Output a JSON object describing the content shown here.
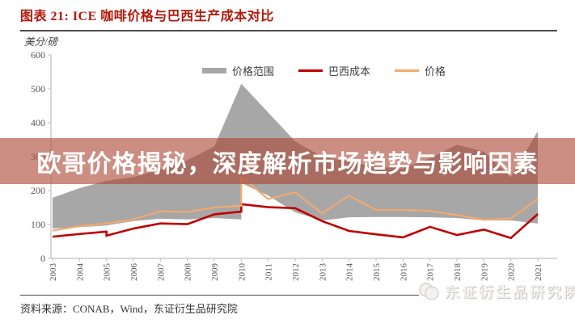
{
  "header": {
    "title": "图表 21: ICE 咖啡价格与巴西生产成本对比"
  },
  "banner": {
    "text": "欧哥价格揭秘，深度解析市场趋势与影响因素",
    "bg_color": "rgba(172,72,53,0.62)",
    "text_color": "#ffffff"
  },
  "footer": {
    "source": "资料来源：CONAB，Wind，东证衍生品研究院"
  },
  "watermark": {
    "brand": "东证衍生品研究院"
  },
  "chart_data": {
    "type": "line",
    "title": "图表 21: ICE 咖啡价格与巴西生产成本对比",
    "ylabel": "美分/磅",
    "xlabel": "",
    "ylim": [
      0,
      600
    ],
    "yticks": [
      0,
      100,
      200,
      300,
      400,
      500,
      600
    ],
    "x": [
      2003,
      2004,
      2005,
      2006,
      2007,
      2008,
      2009,
      2010,
      2011,
      2012,
      2013,
      2014,
      2015,
      2016,
      2017,
      2018,
      2019,
      2020,
      2021
    ],
    "grid": false,
    "legend_position": "top-center",
    "band": {
      "name": "价格范围",
      "color": "#a7a7a7",
      "top": [
        [
          2003,
          179
        ],
        [
          2004,
          207
        ],
        [
          2005,
          229
        ],
        [
          2006,
          240
        ],
        [
          2007,
          262
        ],
        [
          2008,
          290
        ],
        [
          2009,
          330
        ],
        [
          2010,
          515
        ],
        [
          2011,
          430
        ],
        [
          2012,
          345
        ],
        [
          2013,
          300
        ],
        [
          2014,
          285
        ],
        [
          2015,
          270
        ],
        [
          2016,
          265
        ],
        [
          2017,
          295
        ],
        [
          2018,
          335
        ],
        [
          2019,
          315
        ],
        [
          2020,
          240
        ],
        [
          2021,
          375
        ]
      ],
      "bottom": [
        [
          2003,
          88
        ],
        [
          2004,
          92
        ],
        [
          2005,
          97
        ],
        [
          2006,
          110
        ],
        [
          2007,
          117
        ],
        [
          2008,
          115
        ],
        [
          2009,
          119
        ],
        [
          2010,
          115
        ],
        [
          2010,
          222
        ],
        [
          2011,
          185
        ],
        [
          2012,
          136
        ],
        [
          2013,
          112
        ],
        [
          2014,
          121
        ],
        [
          2015,
          122
        ],
        [
          2016,
          122
        ],
        [
          2017,
          121
        ],
        [
          2018,
          119
        ],
        [
          2019,
          112
        ],
        [
          2020,
          112
        ],
        [
          2021,
          103
        ]
      ]
    },
    "series": [
      {
        "name": "巴西成本",
        "color": "#c00000",
        "points": [
          [
            2003,
            64
          ],
          [
            2004,
            72
          ],
          [
            2005,
            79
          ],
          [
            2005,
            67
          ],
          [
            2006,
            88
          ],
          [
            2007,
            103
          ],
          [
            2008,
            101
          ],
          [
            2009,
            130
          ],
          [
            2010,
            138
          ],
          [
            2010,
            160
          ],
          [
            2011,
            151
          ],
          [
            2012,
            148
          ],
          [
            2013,
            110
          ],
          [
            2014,
            81
          ],
          [
            2015,
            71
          ],
          [
            2016,
            62
          ],
          [
            2017,
            93
          ],
          [
            2018,
            69
          ],
          [
            2019,
            85
          ],
          [
            2020,
            60
          ],
          [
            2021,
            131
          ]
        ]
      },
      {
        "name": "价格",
        "color": "#f1a96f",
        "points": [
          [
            2003,
            82
          ],
          [
            2004,
            95
          ],
          [
            2005,
            103
          ],
          [
            2006,
            115
          ],
          [
            2007,
            139
          ],
          [
            2008,
            137
          ],
          [
            2009,
            150
          ],
          [
            2010,
            155
          ],
          [
            2010,
            240
          ],
          [
            2011,
            175
          ],
          [
            2012,
            195
          ],
          [
            2013,
            133
          ],
          [
            2014,
            185
          ],
          [
            2015,
            143
          ],
          [
            2016,
            143
          ],
          [
            2017,
            140
          ],
          [
            2018,
            128
          ],
          [
            2019,
            114
          ],
          [
            2020,
            118
          ],
          [
            2021,
            175
          ]
        ]
      }
    ]
  }
}
